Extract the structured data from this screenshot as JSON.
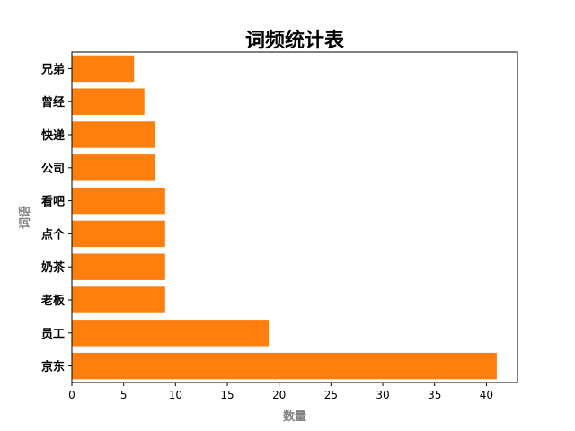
{
  "chart_data": {
    "type": "bar",
    "orientation": "horizontal",
    "title": "词频统计表",
    "xlabel": "数量",
    "ylabel": "词语",
    "categories": [
      "京东",
      "员工",
      "老板",
      "奶茶",
      "点个",
      "看吧",
      "公司",
      "快递",
      "曾经",
      "兄弟"
    ],
    "values": [
      41,
      19,
      9,
      9,
      9,
      9,
      8,
      8,
      7,
      6
    ],
    "xlim": [
      0,
      43
    ],
    "xticks": [
      0,
      5,
      10,
      15,
      20,
      25,
      30,
      35,
      40
    ],
    "grid": false,
    "bar_color": "#ff7f0e"
  }
}
